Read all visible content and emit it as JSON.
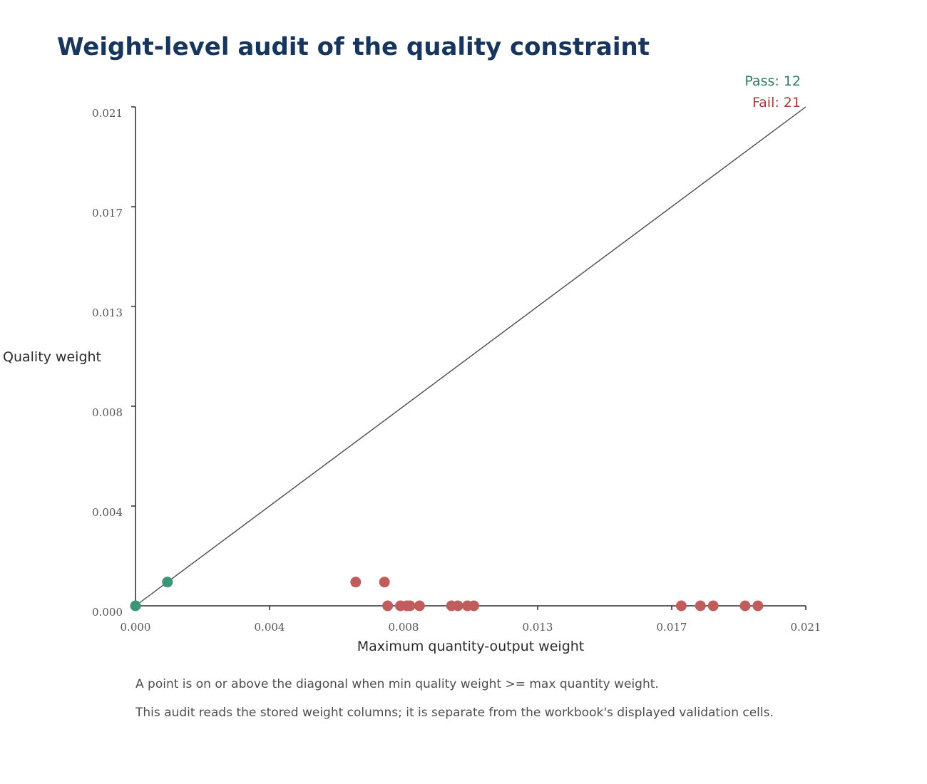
{
  "chart_data": {
    "type": "scatter",
    "title": "Weight-level audit of the quality constraint",
    "xlabel": "Maximum quantity-output weight",
    "ylabel": "Quality weight",
    "xlim": [
      0,
      0.021
    ],
    "ylim": [
      0,
      0.021
    ],
    "x_ticks": [
      "0.000",
      "0.004",
      "0.008",
      "0.013",
      "0.017",
      "0.021"
    ],
    "y_ticks": [
      "0.000",
      "0.004",
      "0.008",
      "0.013",
      "0.017",
      "0.021"
    ],
    "reference_line": "diagonal y = x",
    "grid": false,
    "legend": "top-right",
    "counts": {
      "pass": "Pass: 12",
      "fail": "Fail: 21"
    },
    "series": [
      {
        "key": "pass",
        "color": "#3a9676",
        "points": [
          {
            "x": 0.0,
            "y": 0.0
          },
          {
            "x": 0.001,
            "y": 0.001
          }
        ]
      },
      {
        "key": "fail",
        "color": "#c05c5c",
        "points": [
          {
            "x": 0.0069,
            "y": 0.001
          },
          {
            "x": 0.0078,
            "y": 0.001
          },
          {
            "x": 0.0079,
            "y": 0.0
          },
          {
            "x": 0.0083,
            "y": 0.0
          },
          {
            "x": 0.0085,
            "y": 0.0
          },
          {
            "x": 0.0086,
            "y": 0.0
          },
          {
            "x": 0.0089,
            "y": 0.0
          },
          {
            "x": 0.0099,
            "y": 0.0
          },
          {
            "x": 0.0101,
            "y": 0.0
          },
          {
            "x": 0.0104,
            "y": 0.0
          },
          {
            "x": 0.0106,
            "y": 0.0
          },
          {
            "x": 0.0171,
            "y": 0.0
          },
          {
            "x": 0.0177,
            "y": 0.0
          },
          {
            "x": 0.0181,
            "y": 0.0
          },
          {
            "x": 0.0191,
            "y": 0.0
          },
          {
            "x": 0.0195,
            "y": 0.0
          }
        ]
      }
    ],
    "colors": {
      "pass": "#2e7d5b",
      "fail": "#a23b3b",
      "title": "#17365d"
    }
  },
  "notes": [
    "A point is on or above the diagonal when min quality weight >= max quantity weight.",
    "This audit reads the stored weight columns; it is separate from the workbook's displayed validation cells."
  ]
}
